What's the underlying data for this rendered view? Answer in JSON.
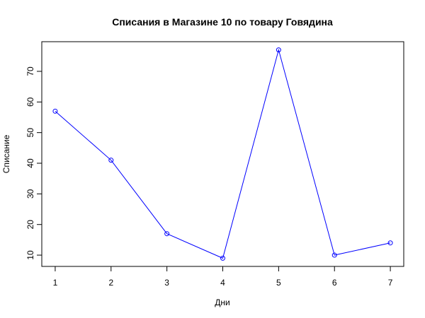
{
  "chart_data": {
    "type": "line",
    "title": "Списания в Магазине 10 по товару Говядина",
    "xlabel": "Дни",
    "ylabel": "Списание",
    "x": [
      1,
      2,
      3,
      4,
      5,
      6,
      7
    ],
    "values": [
      57,
      41,
      17,
      9,
      77,
      10,
      14
    ],
    "xlim": [
      0.76,
      7.24
    ],
    "ylim": [
      6.32,
      79.68
    ],
    "xticks": [
      1,
      2,
      3,
      4,
      5,
      6,
      7
    ],
    "yticks": [
      10,
      20,
      30,
      40,
      50,
      60,
      70
    ],
    "grid": false,
    "markers": "open-circle",
    "series_color": "#0000ff"
  }
}
